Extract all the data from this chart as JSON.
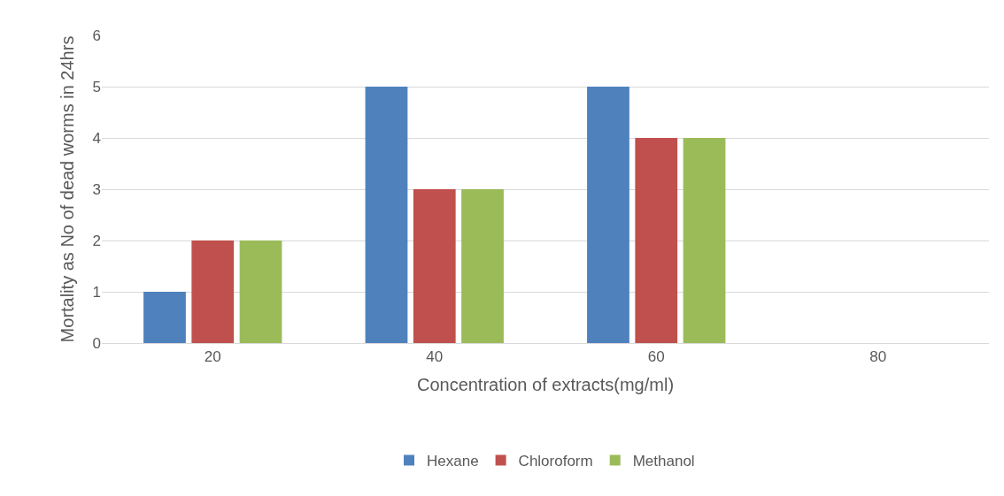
{
  "chart_data": {
    "type": "bar",
    "xlabel": "Concentration of extracts(mg/ml)",
    "ylabel": "Mortality as No of dead worms in 24hrs",
    "categories": [
      "20",
      "40",
      "60",
      "80"
    ],
    "series": [
      {
        "name": "Hexane",
        "color": "#4f81bd",
        "values": [
          1,
          5,
          5,
          0
        ]
      },
      {
        "name": "Chloroform",
        "color": "#c0504d",
        "values": [
          2,
          3,
          4,
          0
        ]
      },
      {
        "name": "Methanol",
        "color": "#9bbb59",
        "values": [
          2,
          3,
          4,
          0
        ]
      }
    ],
    "ylim": [
      0,
      6
    ],
    "yticks": [
      0,
      1,
      2,
      3,
      4,
      5,
      6
    ],
    "grid": "y",
    "legend": "bottom"
  }
}
